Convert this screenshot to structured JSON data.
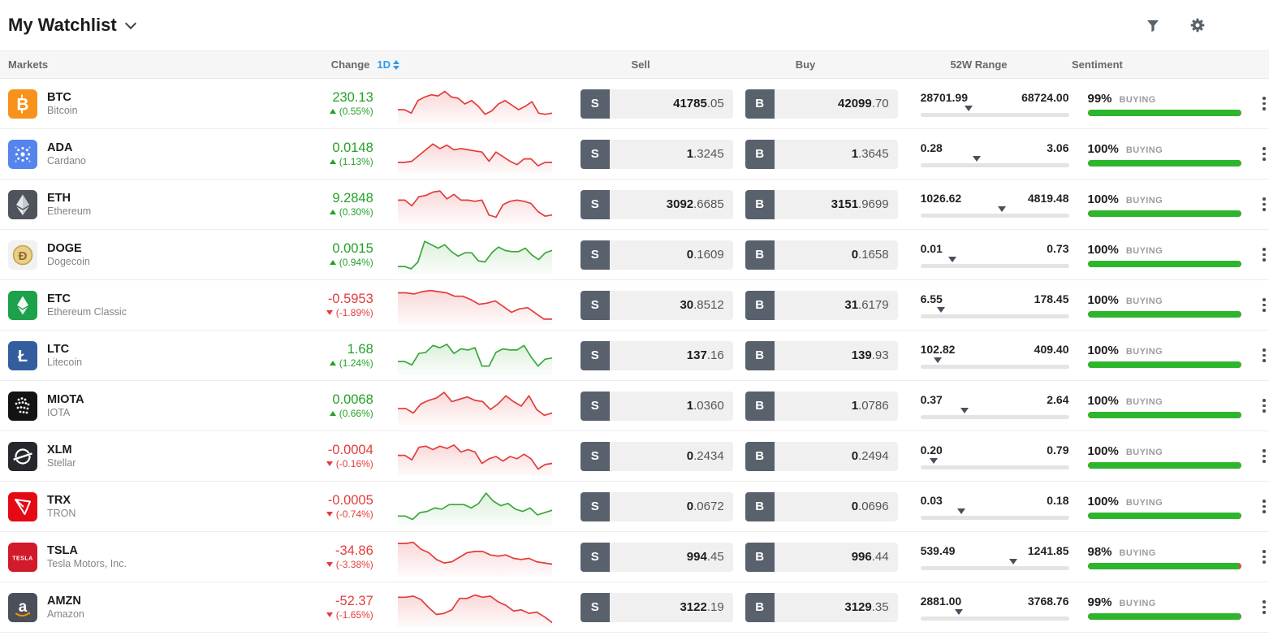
{
  "header": {
    "title": "My Watchlist"
  },
  "table_header": {
    "markets": "Markets",
    "change": "Change",
    "period": "1D",
    "sell": "Sell",
    "buy": "Buy",
    "range": "52W Range",
    "sentiment": "Sentiment"
  },
  "colors": {
    "positive": "#24a227",
    "negative": "#e23d3d",
    "accent_blue": "#2d9bf0",
    "sentiment_green": "#2db52d",
    "sentiment_red": "#e0483e",
    "trade_button_slate": "#59616d",
    "spark_red": "#e23d3d",
    "spark_green": "#3aa83a"
  },
  "rows": [
    {
      "symbol": "BTC",
      "name": "Bitcoin",
      "icon": "btc-icon",
      "tile_color": "#f7931a",
      "change": "230.13",
      "change_pct": "(0.55%)",
      "direction": "up",
      "spark_color": "red",
      "spark": [
        22,
        22,
        25,
        14,
        11,
        9,
        10,
        6,
        11,
        12,
        17,
        14,
        19,
        26,
        23,
        17,
        14,
        18,
        22,
        19,
        15,
        25,
        26,
        25
      ],
      "sell": "41785.05",
      "buy": "42099.70",
      "range_low": "28701.99",
      "range_high": "68724.00",
      "range_pos": 33,
      "sentiment_pct": 99,
      "sentiment_label": "BUYING"
    },
    {
      "symbol": "ADA",
      "name": "Cardano",
      "icon": "ada-icon",
      "tile_color": "#5585ec",
      "change": "0.0148",
      "change_pct": "(1.13%)",
      "direction": "up",
      "spark_color": "red",
      "spark": [
        24,
        24,
        23,
        18,
        13,
        8,
        12,
        9,
        13,
        12,
        13,
        14,
        15,
        23,
        15,
        19,
        23,
        26,
        21,
        21,
        27,
        24,
        24
      ],
      "sell": "1.3245",
      "buy": "1.3645",
      "range_low": "0.28",
      "range_high": "3.06",
      "range_pos": 38,
      "sentiment_pct": 100,
      "sentiment_label": "BUYING"
    },
    {
      "symbol": "ETH",
      "name": "Ethereum",
      "icon": "eth-icon",
      "tile_color": "#4e535c",
      "change": "9.2848",
      "change_pct": "(0.30%)",
      "direction": "up",
      "spark_color": "red",
      "spark": [
        13,
        13,
        18,
        10,
        9,
        6,
        5,
        12,
        8,
        13,
        13,
        14,
        13,
        26,
        28,
        17,
        14,
        13,
        14,
        16,
        23,
        27,
        26
      ],
      "sell": "3092.6685",
      "buy": "3151.9699",
      "range_low": "1026.62",
      "range_high": "4819.48",
      "range_pos": 55,
      "sentiment_pct": 100,
      "sentiment_label": "BUYING"
    },
    {
      "symbol": "DOGE",
      "name": "Dogecoin",
      "icon": "doge-icon",
      "tile_color": "#f1f1f1",
      "change": "0.0015",
      "change_pct": "(0.94%)",
      "direction": "up",
      "spark_color": "green",
      "spark": [
        27,
        27,
        29,
        23,
        5,
        8,
        11,
        8,
        14,
        18,
        15,
        15,
        22,
        23,
        15,
        10,
        13,
        14,
        14,
        11,
        17,
        21,
        15,
        13
      ],
      "sell": "0.1609",
      "buy": "0.1658",
      "range_low": "0.01",
      "range_high": "0.73",
      "range_pos": 22,
      "sentiment_pct": 100,
      "sentiment_label": "BUYING"
    },
    {
      "symbol": "ETC",
      "name": "Ethereum Classic",
      "icon": "etc-icon",
      "tile_color": "#1da14b",
      "change": "-0.5953",
      "change_pct": "(-1.89%)",
      "direction": "down",
      "spark_color": "red",
      "spark": [
        6,
        6,
        7,
        5,
        4,
        5,
        6,
        9,
        9,
        12,
        16,
        15,
        13,
        18,
        23,
        20,
        19,
        24,
        29,
        29
      ],
      "sell": "30.8512",
      "buy": "31.6179",
      "range_low": "6.55",
      "range_high": "178.45",
      "range_pos": 14,
      "sentiment_pct": 100,
      "sentiment_label": "BUYING"
    },
    {
      "symbol": "LTC",
      "name": "Litecoin",
      "icon": "ltc-icon",
      "tile_color": "#345d9d",
      "change": "1.68",
      "change_pct": "(1.24%)",
      "direction": "up",
      "spark_color": "green",
      "spark": [
        22,
        22,
        25,
        15,
        14,
        8,
        10,
        7,
        15,
        11,
        12,
        10,
        26,
        26,
        14,
        11,
        12,
        12,
        8,
        18,
        26,
        20,
        19
      ],
      "sell": "137.16",
      "buy": "139.93",
      "range_low": "102.82",
      "range_high": "409.40",
      "range_pos": 12,
      "sentiment_pct": 100,
      "sentiment_label": "BUYING"
    },
    {
      "symbol": "MIOTA",
      "name": "IOTA",
      "icon": "miota-icon",
      "tile_color": "#131313",
      "change": "0.0068",
      "change_pct": "(0.66%)",
      "direction": "up",
      "spark_color": "red",
      "spark": [
        19,
        19,
        23,
        15,
        12,
        10,
        5,
        13,
        11,
        9,
        12,
        13,
        20,
        15,
        8,
        13,
        17,
        8,
        20,
        25,
        23
      ],
      "sell": "1.0360",
      "buy": "1.0786",
      "range_low": "0.37",
      "range_high": "2.64",
      "range_pos": 30,
      "sentiment_pct": 100,
      "sentiment_label": "BUYING"
    },
    {
      "symbol": "XLM",
      "name": "Stellar",
      "icon": "xlm-icon",
      "tile_color": "#26282d",
      "change": "-0.0004",
      "change_pct": "(-0.16%)",
      "direction": "down",
      "spark_color": "red",
      "spark": [
        16,
        16,
        20,
        9,
        8,
        11,
        8,
        10,
        7,
        13,
        11,
        13,
        23,
        19,
        17,
        21,
        17,
        19,
        15,
        19,
        28,
        24,
        23
      ],
      "sell": "0.2434",
      "buy": "0.2494",
      "range_low": "0.20",
      "range_high": "0.79",
      "range_pos": 9,
      "sentiment_pct": 100,
      "sentiment_label": "BUYING"
    },
    {
      "symbol": "TRX",
      "name": "TRON",
      "icon": "trx-icon",
      "tile_color": "#e50914",
      "change": "-0.0005",
      "change_pct": "(-0.74%)",
      "direction": "down",
      "spark_color": "green",
      "spark": [
        25,
        25,
        28,
        22,
        21,
        18,
        19,
        15,
        15,
        15,
        18,
        14,
        5,
        12,
        16,
        14,
        19,
        21,
        18,
        24,
        22,
        20
      ],
      "sell": "0.0672",
      "buy": "0.0696",
      "range_low": "0.03",
      "range_high": "0.18",
      "range_pos": 28,
      "sentiment_pct": 100,
      "sentiment_label": "BUYING"
    },
    {
      "symbol": "TSLA",
      "name": "Tesla Motors, Inc.",
      "icon": "tsla-icon",
      "tile_color": "#d11a2a",
      "change": "-34.86",
      "change_pct": "(-3.38%)",
      "direction": "down",
      "spark_color": "red",
      "spark": [
        5,
        5,
        4,
        10,
        13,
        19,
        22,
        21,
        17,
        13,
        12,
        12,
        15,
        16,
        15,
        18,
        19,
        18,
        21,
        22,
        23
      ],
      "sell": "994.45",
      "buy": "996.44",
      "range_low": "539.49",
      "range_high": "1241.85",
      "range_pos": 63,
      "sentiment_pct": 98,
      "sentiment_label": "BUYING"
    },
    {
      "symbol": "AMZN",
      "name": "Amazon",
      "icon": "amzn-icon",
      "tile_color": "#4a4f59",
      "change": "-52.37",
      "change_pct": "(-1.65%)",
      "direction": "down",
      "spark_color": "red",
      "spark": [
        8,
        8,
        7,
        10,
        17,
        23,
        22,
        19,
        9,
        9,
        6,
        8,
        7,
        12,
        15,
        20,
        19,
        22,
        21,
        25,
        30
      ],
      "sell": "3122.19",
      "buy": "3129.35",
      "range_low": "2881.00",
      "range_high": "3768.76",
      "range_pos": 26,
      "sentiment_pct": 99,
      "sentiment_label": "BUYING"
    }
  ]
}
